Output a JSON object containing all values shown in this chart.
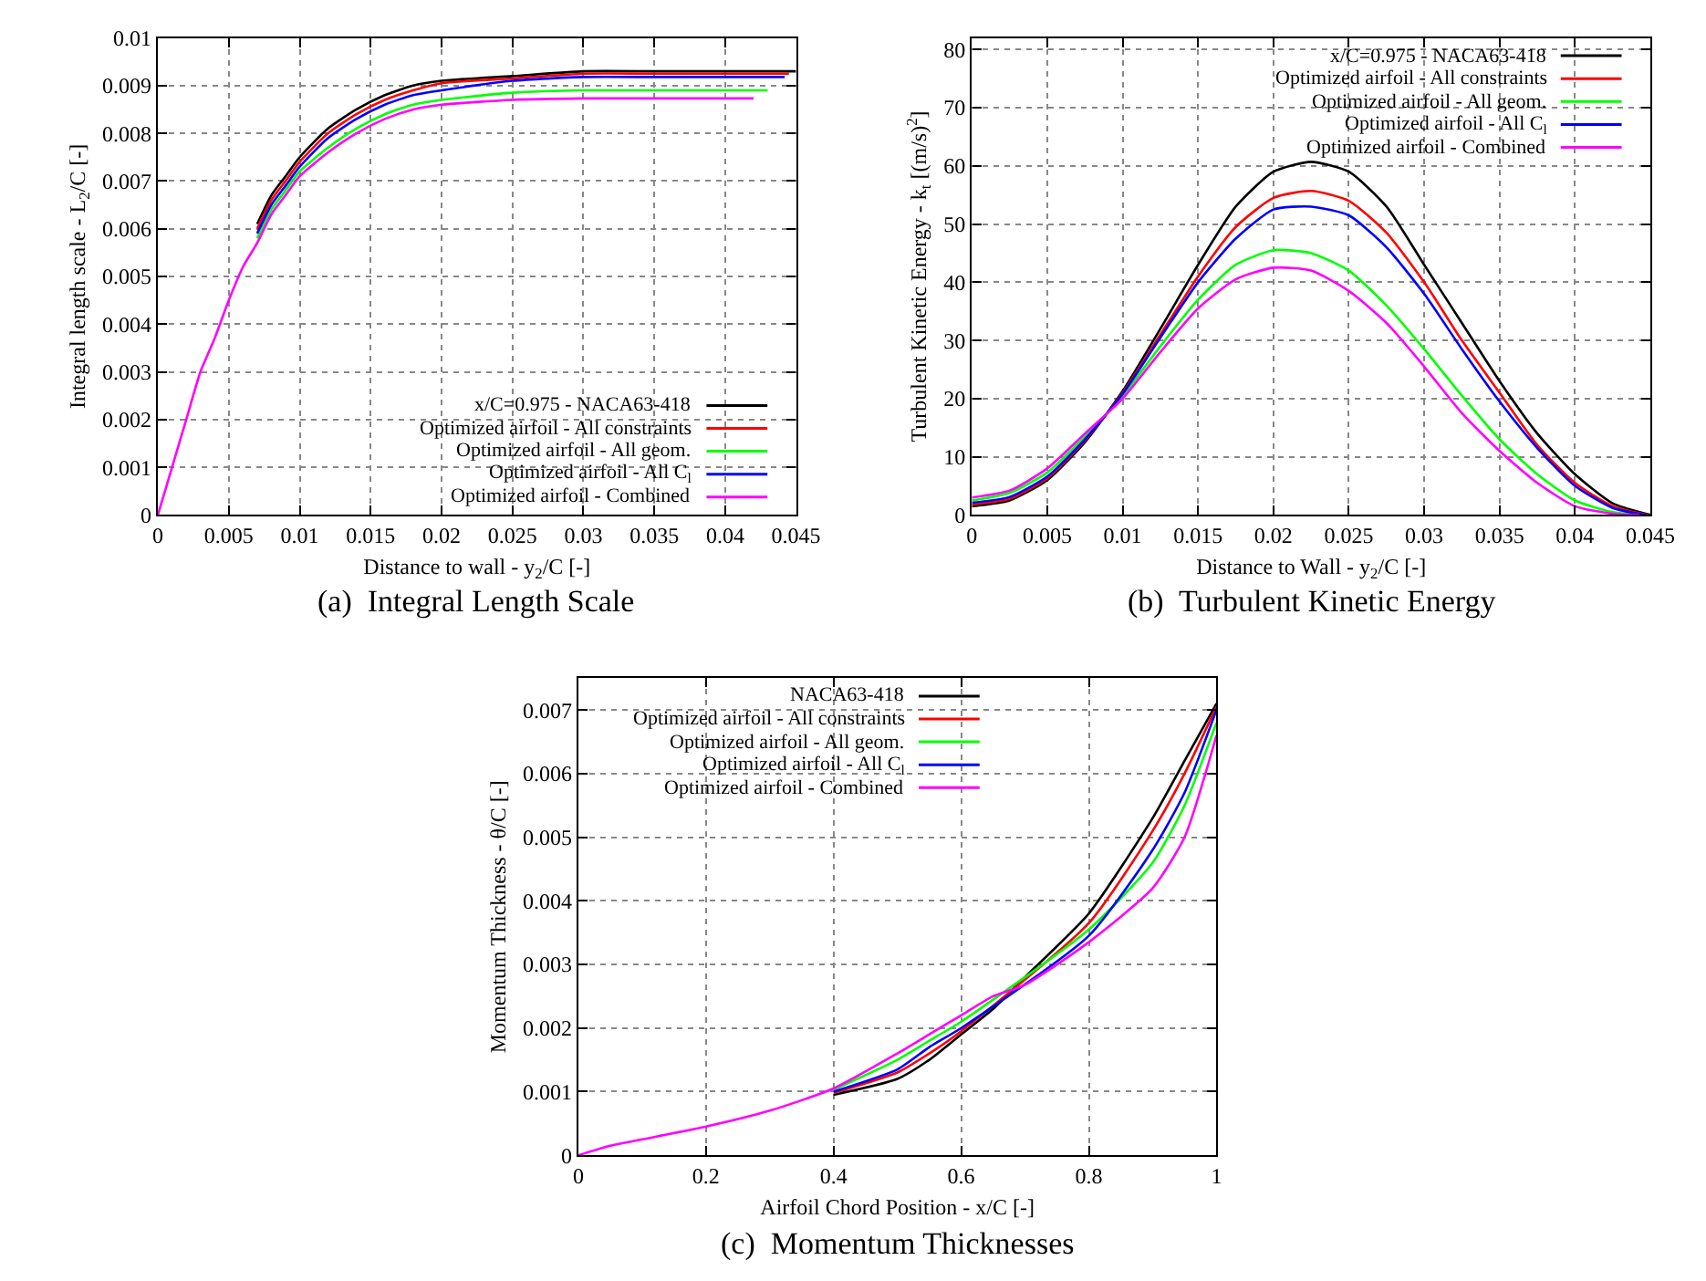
{
  "chart_data": [
    {
      "type": "line",
      "title": "(a)  Integral Length Scale",
      "xlabel": "Distance to wall - y$_{2}$/C [-]",
      "ylabel": "Integral length scale - L$_{2}$/C [-]",
      "xlim": [
        0,
        0.045
      ],
      "ylim": [
        0,
        0.01
      ],
      "xticks": [
        0,
        0.005,
        0.01,
        0.015,
        0.02,
        0.025,
        0.03,
        0.035,
        0.04,
        0.045
      ],
      "yticks": [
        0,
        0.001,
        0.002,
        0.003,
        0.004,
        0.005,
        0.006,
        0.007,
        0.008,
        0.009,
        0.01
      ],
      "grid": true,
      "legend": "bottom right",
      "marker": "none",
      "line_style": "solid",
      "series": [
        {
          "name": "x/C=0.975 - NACA63-418",
          "color": "#000000",
          "x": [
            0.007,
            0.008,
            0.009,
            0.01,
            0.012,
            0.014,
            0.016,
            0.018,
            0.02,
            0.025,
            0.03,
            0.035,
            0.04,
            0.045
          ],
          "values": [
            0.0061,
            0.0067,
            0.0071,
            0.0075,
            0.0081,
            0.0085,
            0.0088,
            0.009,
            0.0091,
            0.0092,
            0.0093,
            0.0093,
            0.0093,
            0.0093
          ]
        },
        {
          "name": "Optimized airfoil - All constraints",
          "color": "#ff0000",
          "x": [
            0.007,
            0.008,
            0.009,
            0.01,
            0.012,
            0.014,
            0.016,
            0.018,
            0.02,
            0.025,
            0.03,
            0.035,
            0.04,
            0.0445
          ],
          "values": [
            0.006,
            0.0066,
            0.007,
            0.0074,
            0.008,
            0.0084,
            0.0087,
            0.0089,
            0.00905,
            0.00915,
            0.00925,
            0.00925,
            0.00925,
            0.00925
          ]
        },
        {
          "name": "Optimized airfoil - All geom.",
          "color": "#00ff00",
          "x": [
            0.007,
            0.008,
            0.009,
            0.01,
            0.012,
            0.014,
            0.016,
            0.018,
            0.02,
            0.025,
            0.03,
            0.035,
            0.04,
            0.043
          ],
          "values": [
            0.0058,
            0.0064,
            0.0068,
            0.0072,
            0.0077,
            0.0081,
            0.0084,
            0.0086,
            0.0087,
            0.00885,
            0.0089,
            0.0089,
            0.0089,
            0.0089
          ]
        },
        {
          "name": "Optimized airfoil - All C$_{l}$",
          "color": "#0000ff",
          "x": [
            0.007,
            0.008,
            0.009,
            0.01,
            0.012,
            0.014,
            0.016,
            0.018,
            0.02,
            0.025,
            0.03,
            0.035,
            0.04,
            0.0442
          ],
          "values": [
            0.0059,
            0.0065,
            0.0069,
            0.0073,
            0.0079,
            0.0083,
            0.0086,
            0.0088,
            0.0089,
            0.0091,
            0.00918,
            0.00918,
            0.00918,
            0.00918
          ]
        },
        {
          "name": "Optimized airfoil - Combined",
          "color": "#ff00ff",
          "x": [
            0,
            0.001,
            0.002,
            0.003,
            0.004,
            0.005,
            0.006,
            0.007,
            0.008,
            0.009,
            0.01,
            0.012,
            0.014,
            0.016,
            0.018,
            0.02,
            0.025,
            0.03,
            0.035,
            0.04,
            0.042
          ],
          "values": [
            0,
            0.001,
            0.002,
            0.003,
            0.0037,
            0.0045,
            0.0052,
            0.0057,
            0.0063,
            0.0067,
            0.0071,
            0.0076,
            0.008,
            0.0083,
            0.0085,
            0.0086,
            0.0087,
            0.00873,
            0.00873,
            0.00873,
            0.00873
          ]
        }
      ]
    },
    {
      "type": "line",
      "title": "(b)  Turbulent Kinetic Energy",
      "xlabel": "Distance to Wall - y$_{2}$/C [-]",
      "ylabel": "Turbulent Kinetic Energy - k$_{t}$ [(m/s)$^{2}$]",
      "xlim": [
        0,
        0.045
      ],
      "ylim": [
        0,
        82
      ],
      "xticks": [
        0,
        0.005,
        0.01,
        0.015,
        0.02,
        0.025,
        0.03,
        0.035,
        0.04,
        0.045
      ],
      "yticks": [
        0,
        10,
        20,
        30,
        40,
        50,
        60,
        70,
        80
      ],
      "grid": true,
      "legend": "top right",
      "marker": "none",
      "line_style": "solid",
      "series": [
        {
          "name": "x/C=0.975 - NACA63-418",
          "color": "#000000",
          "x": [
            0,
            0.0025,
            0.005,
            0.0075,
            0.01,
            0.0125,
            0.015,
            0.0175,
            0.02,
            0.0225,
            0.025,
            0.0275,
            0.03,
            0.0325,
            0.035,
            0.0375,
            0.04,
            0.0425,
            0.045
          ],
          "values": [
            1.5,
            2.5,
            6,
            12.5,
            21.3,
            32,
            43,
            53,
            59,
            60.7,
            59,
            53,
            43,
            33,
            23,
            14,
            7,
            2,
            0
          ]
        },
        {
          "name": "Optimized airfoil - All constraints",
          "color": "#ff0000",
          "x": [
            0,
            0.0025,
            0.005,
            0.0075,
            0.01,
            0.0125,
            0.015,
            0.0175,
            0.02,
            0.0225,
            0.025,
            0.0275,
            0.03,
            0.0325,
            0.035,
            0.0375,
            0.04,
            0.0425,
            0.0448
          ],
          "values": [
            1.8,
            2.8,
            6.3,
            12.8,
            21,
            31,
            41,
            49.5,
            54.5,
            55.7,
            54,
            48.5,
            40,
            30,
            21,
            12,
            5.5,
            1.5,
            0
          ]
        },
        {
          "name": "Optimized airfoil - All geom.",
          "color": "#00ff00",
          "x": [
            0,
            0.0025,
            0.005,
            0.0075,
            0.01,
            0.0125,
            0.015,
            0.0175,
            0.02,
            0.0225,
            0.025,
            0.0275,
            0.03,
            0.0325,
            0.035,
            0.0375,
            0.04,
            0.0425,
            0.0445
          ],
          "values": [
            2.5,
            3.8,
            7.3,
            13.5,
            20.5,
            29,
            37,
            43,
            45.5,
            45,
            42,
            36,
            28.5,
            20.5,
            13,
            7,
            2.5,
            0.5,
            0
          ]
        },
        {
          "name": "Optimized airfoil - All C$_{l}$",
          "color": "#0000ff",
          "x": [
            0,
            0.0025,
            0.005,
            0.0075,
            0.01,
            0.0125,
            0.015,
            0.0175,
            0.02,
            0.0225,
            0.025,
            0.0275,
            0.03,
            0.0325,
            0.035,
            0.0375,
            0.04,
            0.0425,
            0.0447
          ],
          "values": [
            2.1,
            3.1,
            6.6,
            13,
            20.8,
            30.5,
            40,
            47.5,
            52.5,
            53,
            51.5,
            46,
            38,
            28.5,
            19.5,
            11.5,
            5,
            1.2,
            0
          ]
        },
        {
          "name": "Optimized airfoil - Combined",
          "color": "#ff00ff",
          "x": [
            0,
            0.0025,
            0.005,
            0.0075,
            0.01,
            0.0125,
            0.015,
            0.0175,
            0.02,
            0.0225,
            0.025,
            0.0275,
            0.03,
            0.0325,
            0.035,
            0.0375,
            0.04,
            0.0425,
            0.0443
          ],
          "values": [
            3,
            4.2,
            8,
            14,
            20,
            28,
            35.5,
            40.5,
            42.5,
            42,
            38.5,
            33,
            25.5,
            17.5,
            11,
            5.5,
            1.5,
            0.2,
            0
          ]
        }
      ]
    },
    {
      "type": "line",
      "title": "(c)  Momentum Thicknesses",
      "xlabel": "Airfoil Chord Position - x/C [-]",
      "ylabel": "Momentum Thickness - θ/C [-]",
      "xlim": [
        0,
        1
      ],
      "ylim": [
        0,
        0.0075
      ],
      "xticks": [
        0,
        0.2,
        0.4,
        0.6,
        0.8,
        1
      ],
      "yticks": [
        0,
        0.001,
        0.002,
        0.003,
        0.004,
        0.005,
        0.006,
        0.007
      ],
      "grid": true,
      "legend": "top left",
      "marker": "none",
      "line_style": "solid",
      "series": [
        {
          "name": "NACA63-418",
          "color": "#000000",
          "x": [
            0.4,
            0.5,
            0.55,
            0.6,
            0.65,
            0.7,
            0.8,
            0.9,
            0.95,
            1
          ],
          "values": [
            0.00095,
            0.0012,
            0.0015,
            0.0019,
            0.0023,
            0.0028,
            0.0038,
            0.0053,
            0.0062,
            0.0071
          ]
        },
        {
          "name": "Optimized airfoil - All constraints",
          "color": "#ff0000",
          "x": [
            0.4,
            0.5,
            0.55,
            0.6,
            0.8,
            0.9,
            0.95,
            1
          ],
          "values": [
            0.00098,
            0.0013,
            0.0016,
            0.00195,
            0.00365,
            0.0051,
            0.006,
            0.00705
          ]
        },
        {
          "name": "Optimized airfoil - All geom.",
          "color": "#00ff00",
          "x": [
            0.4,
            0.5,
            0.55,
            0.6,
            0.8,
            0.9,
            0.95,
            1
          ],
          "values": [
            0.00103,
            0.0015,
            0.0018,
            0.0021,
            0.00355,
            0.0046,
            0.0055,
            0.0068
          ]
        },
        {
          "name": "Optimized airfoil - All C$_{l}$",
          "color": "#0000ff",
          "x": [
            0.4,
            0.5,
            0.55,
            0.6,
            0.8,
            0.9,
            0.95,
            1
          ],
          "values": [
            0.001,
            0.00135,
            0.0017,
            0.002,
            0.00345,
            0.0048,
            0.0057,
            0.007
          ]
        },
        {
          "name": "Optimized airfoil - Combined",
          "color": "#ff00ff",
          "x": [
            0,
            0.05,
            0.1,
            0.2,
            0.3,
            0.4,
            0.5,
            0.55,
            0.6,
            0.65,
            0.7,
            0.8,
            0.9,
            0.95,
            1
          ],
          "values": [
            0,
            0.00015,
            0.00025,
            0.00045,
            0.0007,
            0.00105,
            0.0016,
            0.0019,
            0.0022,
            0.0025,
            0.00268,
            0.00335,
            0.0042,
            0.005,
            0.0066
          ]
        }
      ]
    }
  ]
}
